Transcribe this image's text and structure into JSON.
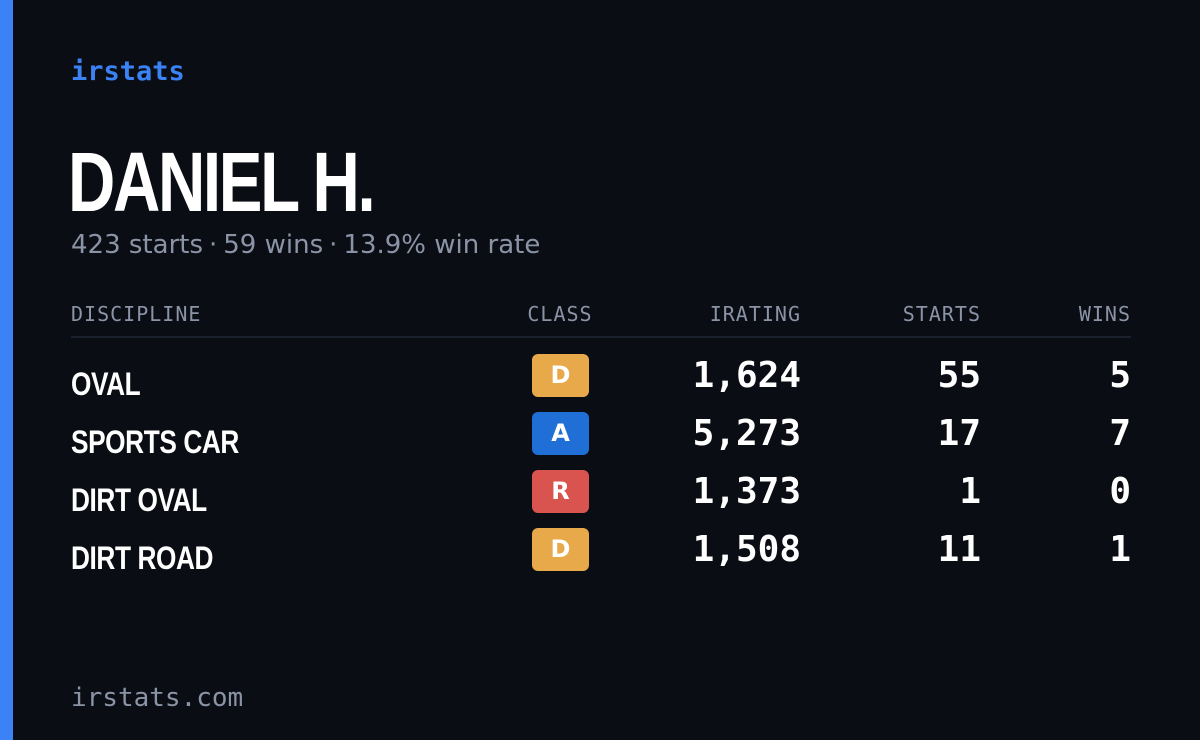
{
  "brand": "irstats",
  "driver": {
    "name": "DANIEL H.",
    "starts_text": "423 starts",
    "wins_text": "59 wins",
    "winrate_text": "13.9% win rate",
    "separator": "·"
  },
  "table": {
    "headers": {
      "discipline": "DISCIPLINE",
      "class": "CLASS",
      "irating": "IRATING",
      "starts": "STARTS",
      "wins": "WINS"
    },
    "rows": [
      {
        "discipline": "OVAL",
        "class": "D",
        "class_color": "#e8a94a",
        "irating": "1,624",
        "starts": "55",
        "wins": "5"
      },
      {
        "discipline": "SPORTS CAR",
        "class": "A",
        "class_color": "#1f6fd6",
        "irating": "5,273",
        "starts": "17",
        "wins": "7"
      },
      {
        "discipline": "DIRT OVAL",
        "class": "R",
        "class_color": "#d9534f",
        "irating": "1,373",
        "starts": "1",
        "wins": "0"
      },
      {
        "discipline": "DIRT ROAD",
        "class": "D",
        "class_color": "#e8a94a",
        "irating": "1,508",
        "starts": "11",
        "wins": "1"
      }
    ]
  },
  "footer": "irstats.com",
  "colors": {
    "accent": "#3b82f6",
    "background": "#0a0d14",
    "muted_text": "#8b94a6"
  }
}
